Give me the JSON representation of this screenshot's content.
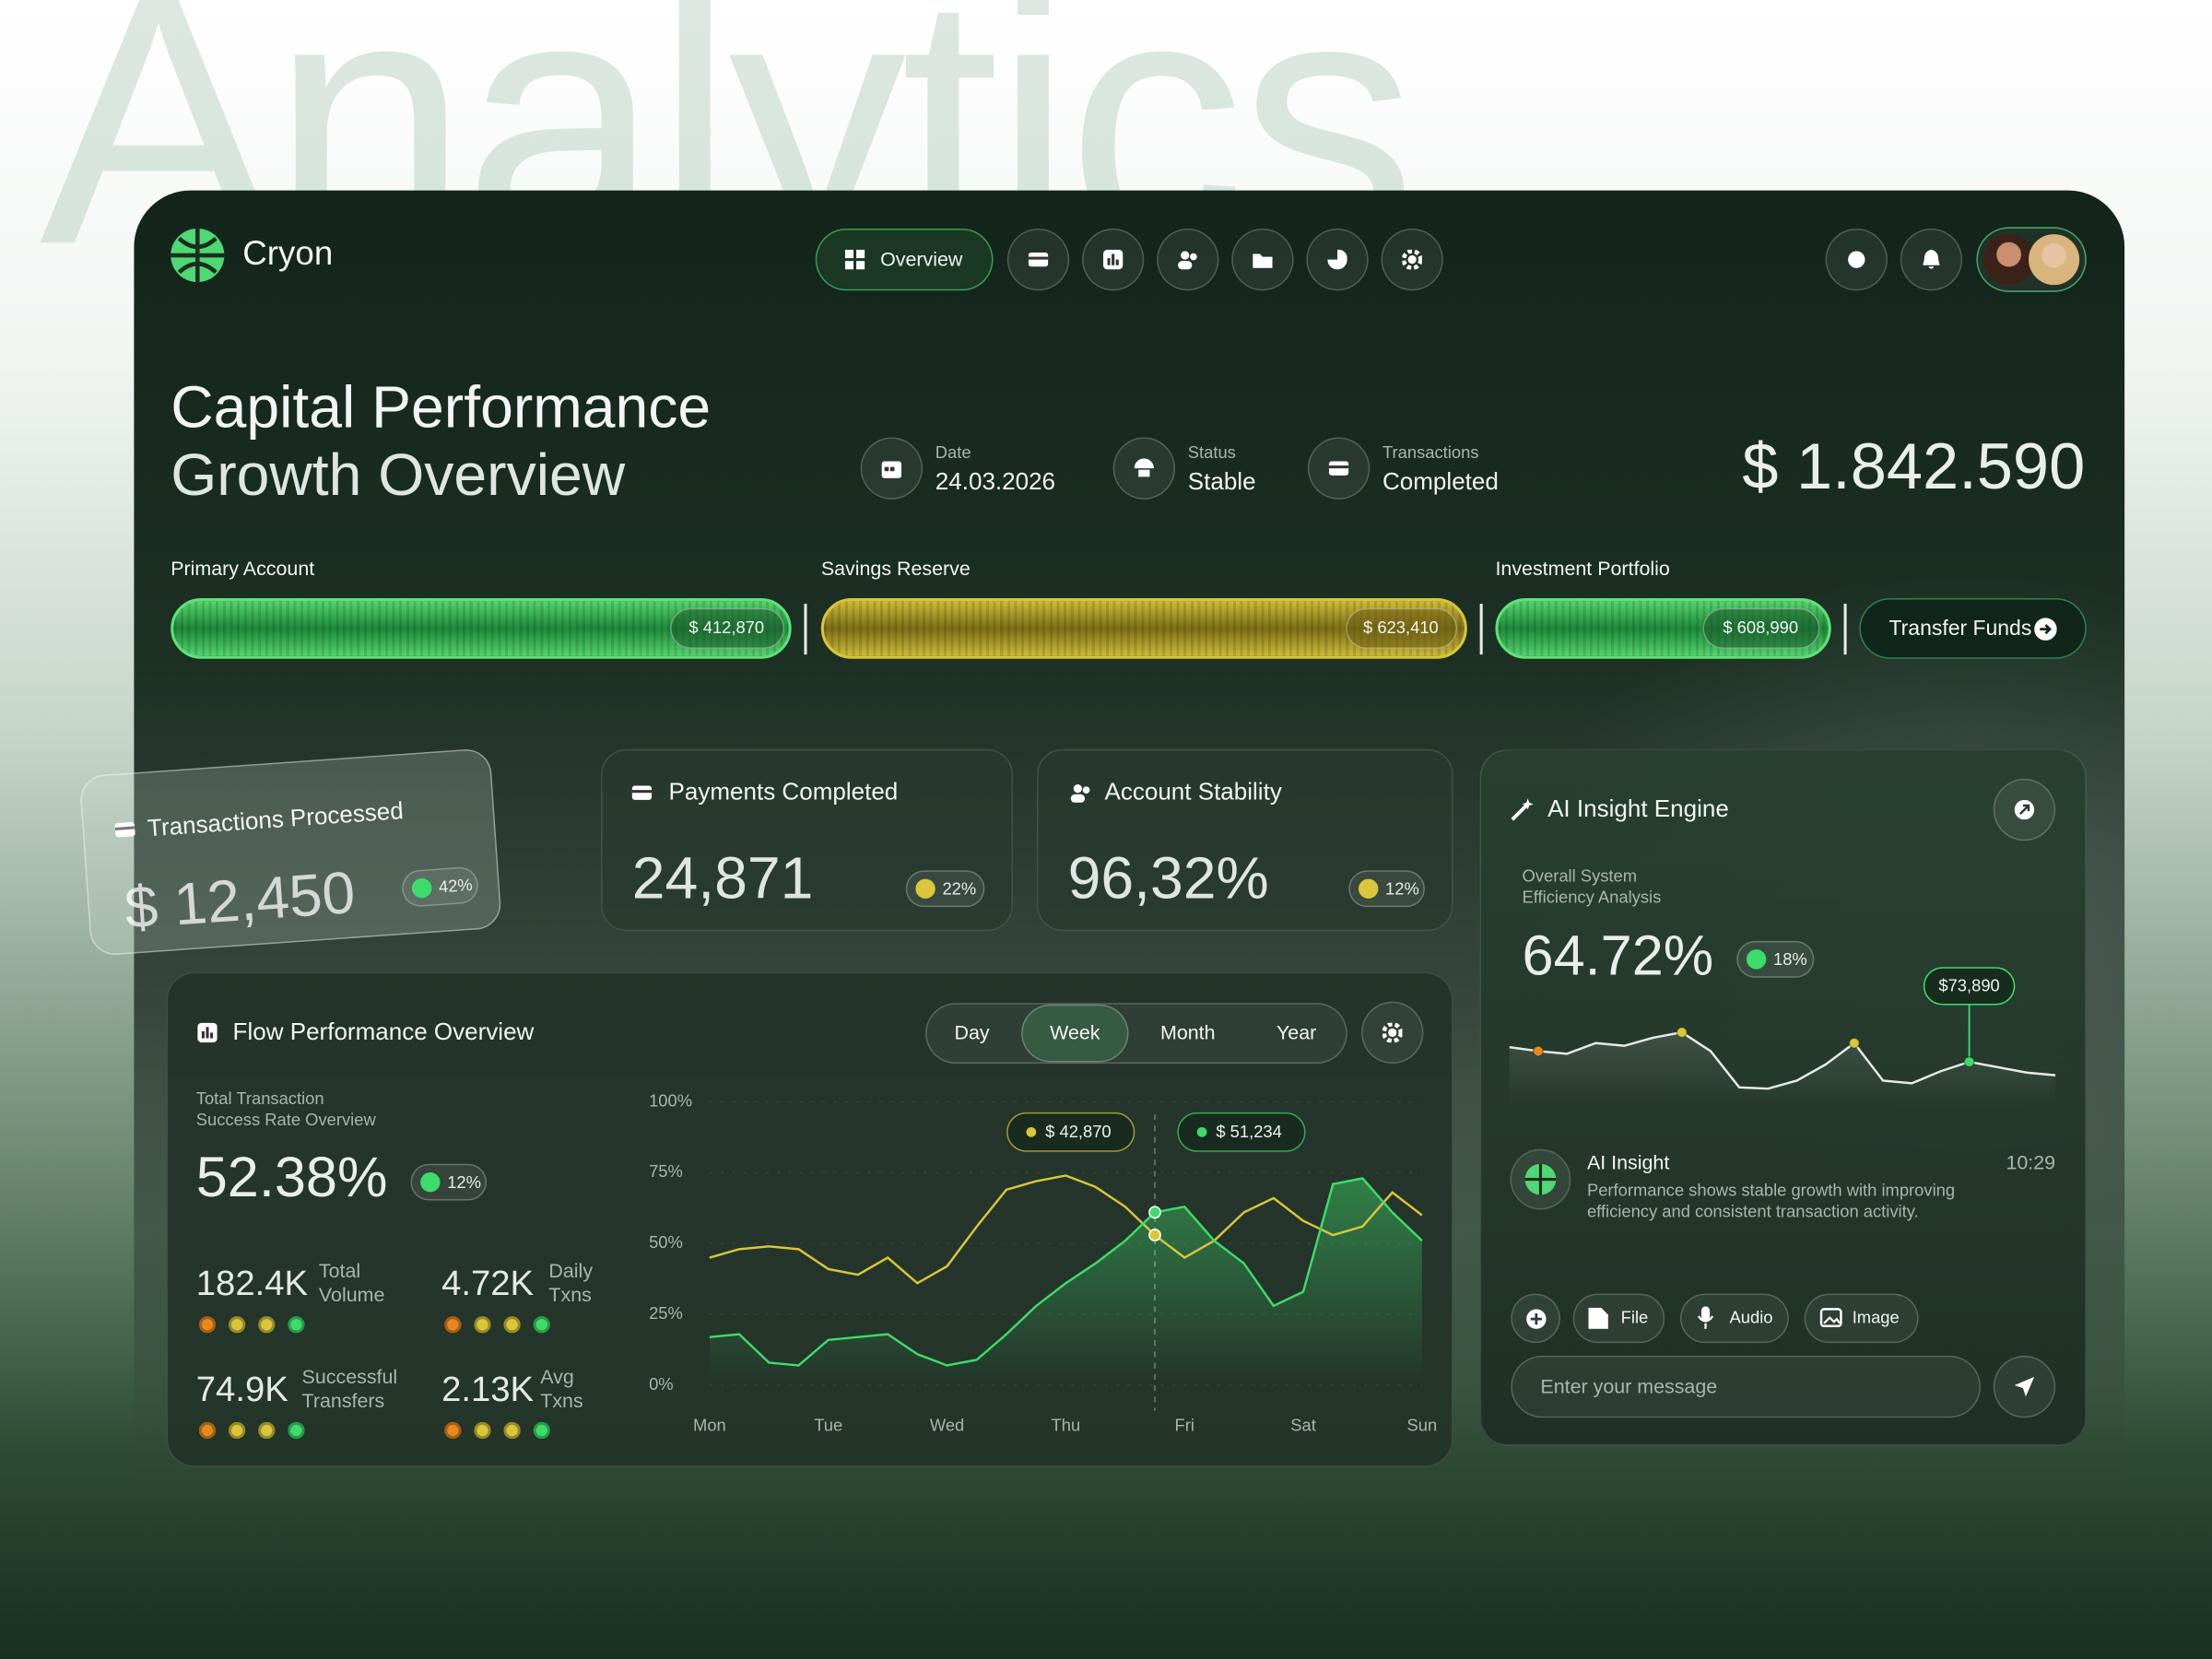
{
  "background_title": "Analytics",
  "brand": "Cryon",
  "nav": {
    "overview": "Overview"
  },
  "header": {
    "title": [
      "Capital Performance",
      "Growth Overview"
    ],
    "meta": [
      {
        "label": "Date",
        "value": "24.03.2026"
      },
      {
        "label": "Status",
        "value": "Stable"
      },
      {
        "label": "Transactions",
        "value": "Completed"
      }
    ],
    "total": "$ 1.842.590"
  },
  "accounts": [
    {
      "label": "Primary Account",
      "amount": "$ 412,870"
    },
    {
      "label": "Savings Reserve",
      "amount": "$ 623,410"
    },
    {
      "label": "Investment Portfolio",
      "amount": "$ 608,990"
    }
  ],
  "transfer_button": "Transfer Funds",
  "stats": [
    {
      "title": "Transactions Processed",
      "value": "$ 12,450",
      "change": "42%"
    },
    {
      "title": "Payments Completed",
      "value": "24,871",
      "change": "22%"
    },
    {
      "title": "Account Stability",
      "value": "96,32%",
      "change": "12%"
    }
  ],
  "flow": {
    "title": "Flow Performance Overview",
    "tabs": [
      "Day",
      "Week",
      "Month",
      "Year"
    ],
    "active_tab": "Week",
    "subtitle": [
      "Total Transaction",
      "Success Rate Overview"
    ],
    "value": "52.38%",
    "change": "12%",
    "metrics": [
      {
        "value": "182.4K",
        "label": [
          "Total",
          "Volume"
        ]
      },
      {
        "value": "4.72K",
        "label": [
          "Daily",
          "Txns"
        ]
      },
      {
        "value": "74.9K",
        "label": [
          "Successful",
          "Transfers"
        ]
      },
      {
        "value": "2.13K",
        "label": [
          "Avg",
          "Txns"
        ]
      }
    ],
    "chart": {
      "type": "line",
      "categories": [
        "Mon",
        null,
        null,
        null,
        "Tue",
        null,
        null,
        null,
        "Wed",
        null,
        null,
        null,
        "Thu",
        null,
        null,
        null,
        "Fri",
        null,
        null,
        null,
        "Sat",
        null,
        null,
        null,
        "Sun"
      ],
      "series": [
        {
          "color": "#d9c63a",
          "values": [
            45,
            48,
            49,
            48,
            41,
            39,
            45,
            36,
            42,
            56,
            69,
            72,
            74,
            70,
            63,
            53,
            45,
            51,
            61,
            66,
            58,
            53,
            56,
            68,
            60
          ]
        },
        {
          "color": "#3ddc6a",
          "fill": true,
          "values": [
            17,
            18,
            8,
            7,
            16,
            17,
            18,
            11,
            7,
            9,
            18,
            28,
            36,
            43,
            51,
            61,
            63,
            51,
            43,
            28,
            33,
            71,
            73,
            61,
            51
          ]
        }
      ],
      "ylim": [
        0,
        100
      ],
      "yticks": [
        {
          "value": 0,
          "label": "0%"
        },
        {
          "value": 25,
          "label": "25%"
        },
        {
          "value": 50,
          "label": "50%"
        },
        {
          "value": 75,
          "label": "75%"
        },
        {
          "value": 100,
          "label": "100%"
        }
      ],
      "grid": true,
      "annotations": [
        {
          "label": "$ 42,870",
          "series": 0,
          "index": 15
        },
        {
          "label": "$ 51,234",
          "series": 1,
          "index": 15
        }
      ]
    }
  },
  "ai": {
    "title": "AI Insight Engine",
    "subtitle": [
      "Overall System",
      "Efficiency Analysis"
    ],
    "value": "64.72%",
    "change": "18%",
    "chart": {
      "type": "line",
      "color": "#e8ece9",
      "values": [
        45,
        42,
        40,
        48,
        46,
        52,
        56,
        42,
        15,
        14,
        20,
        32,
        48,
        20,
        18,
        27,
        34,
        30,
        26,
        24
      ],
      "ylim": [
        0,
        100
      ],
      "highlights": [
        {
          "index": 1,
          "color": "#e8891f"
        },
        {
          "index": 6,
          "color": "#d9c63a"
        },
        {
          "index": 12,
          "color": "#d9c63a"
        },
        {
          "index": 16,
          "color": "#3ddc6a",
          "label": "$73,890"
        }
      ]
    },
    "message": {
      "sender": "AI Insight",
      "time": "10:29",
      "text": [
        "Performance shows stable growth with improving",
        "efficiency and consistent transaction activity."
      ]
    },
    "attachments": [
      "File",
      "Audio",
      "Image"
    ],
    "input_placeholder": "Enter your message"
  }
}
